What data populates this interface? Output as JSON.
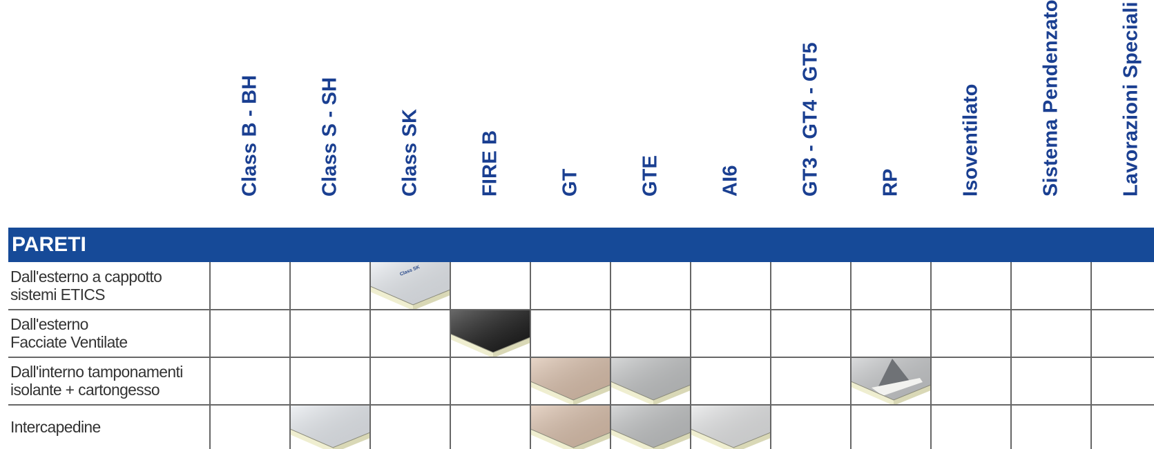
{
  "columns": [
    {
      "label": "Class B - BH"
    },
    {
      "label": "Class S - SH"
    },
    {
      "label": "Class SK"
    },
    {
      "label": "FIRE B"
    },
    {
      "label": "GT"
    },
    {
      "label": "GTE"
    },
    {
      "label": "AI6"
    },
    {
      "label": "GT3 - GT4 - GT5"
    },
    {
      "label": "RP"
    },
    {
      "label": "Isoventilato"
    },
    {
      "label": "Sistema Pendenzato"
    },
    {
      "label": "Lavorazioni Speciali"
    }
  ],
  "section": {
    "title": "PARETI"
  },
  "rows": [
    {
      "line1": "Dall'esterno a cappotto",
      "line2": "sistemi ETICS",
      "panels": [
        {
          "col": 2,
          "type": "light-blue-label",
          "label": "Class SK"
        }
      ]
    },
    {
      "line1": "Dall'esterno",
      "line2": "Facciate Ventilate",
      "panels": [
        {
          "col": 3,
          "type": "black"
        }
      ]
    },
    {
      "line1": "Dall'interno tamponamenti",
      "line2": "isolante + cartongesso",
      "panels": [
        {
          "col": 4,
          "type": "beige"
        },
        {
          "col": 5,
          "type": "grey"
        },
        {
          "col": 8,
          "type": "foil-split"
        }
      ]
    },
    {
      "line1": "Intercapedine",
      "line2": "",
      "panels": [
        {
          "col": 1,
          "type": "light-blue"
        },
        {
          "col": 4,
          "type": "beige"
        },
        {
          "col": 5,
          "type": "grey"
        },
        {
          "col": 6,
          "type": "white-grey"
        }
      ]
    }
  ],
  "colors": {
    "header_text": "#1a3f91",
    "section_bar": "#164a98",
    "grid_line": "#666666",
    "foam": "#efeed0"
  }
}
